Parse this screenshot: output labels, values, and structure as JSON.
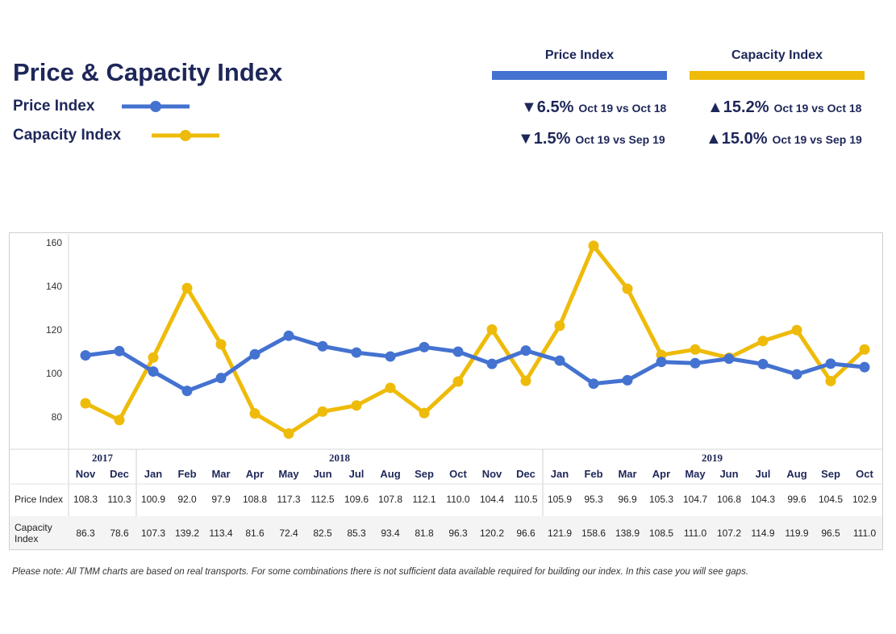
{
  "header": {
    "title": "Price & Capacity Index",
    "legend": [
      {
        "label": "Price Index",
        "color": "#4472d0"
      },
      {
        "label": "Capacity Index",
        "color": "#eebb0a"
      }
    ]
  },
  "kpis": [
    {
      "heading": "Price Index",
      "color": "#4472d0",
      "rows": [
        {
          "arrow": "▼",
          "pct": "6.5%",
          "comparison": "Oct 19 vs Oct 18"
        },
        {
          "arrow": "▼",
          "pct": "1.5%",
          "comparison": "Oct 19 vs Sep 19"
        }
      ]
    },
    {
      "heading": "Capacity Index",
      "color": "#eebb0a",
      "rows": [
        {
          "arrow": "▲",
          "pct": "15.2%",
          "comparison": "Oct 19 vs Oct 18"
        },
        {
          "arrow": "▲",
          "pct": "15.0%",
          "comparison": "Oct 19 vs Sep 19"
        }
      ]
    }
  ],
  "chart_data": {
    "type": "line",
    "years": [
      {
        "label": "2017",
        "months": 2
      },
      {
        "label": "2018",
        "months": 12
      },
      {
        "label": "2019",
        "months": 10
      }
    ],
    "categories": [
      "Nov",
      "Dec",
      "Jan",
      "Feb",
      "Mar",
      "Apr",
      "May",
      "Jun",
      "Jul",
      "Aug",
      "Sep",
      "Oct",
      "Nov",
      "Dec",
      "Jan",
      "Feb",
      "Mar",
      "Apr",
      "May",
      "Jun",
      "Jul",
      "Aug",
      "Sep",
      "Oct"
    ],
    "yticks": [
      80,
      100,
      120,
      140,
      160
    ],
    "ylim": [
      67,
      163
    ],
    "series": [
      {
        "name": "Price Index",
        "color": "#4472d0",
        "values": [
          108.3,
          110.3,
          100.9,
          92.0,
          97.9,
          108.8,
          117.3,
          112.5,
          109.6,
          107.8,
          112.1,
          110.0,
          104.4,
          110.5,
          105.9,
          95.3,
          96.9,
          105.3,
          104.7,
          106.8,
          104.3,
          99.6,
          104.5,
          102.9
        ],
        "labels": [
          "108.3",
          "110.3",
          "100.9",
          "92.0",
          "97.9",
          "108.8",
          "117.3",
          "112.5",
          "109.6",
          "107.8",
          "112.1",
          "110.0",
          "104.4",
          "110.5",
          "105.9",
          "95.3",
          "96.9",
          "105.3",
          "104.7",
          "106.8",
          "104.3",
          "99.6",
          "104.5",
          "102.9"
        ]
      },
      {
        "name": "Capacity Index",
        "table_label": [
          "Capacity",
          "Index"
        ],
        "color": "#eebb0a",
        "values": [
          86.3,
          78.6,
          107.3,
          139.2,
          113.4,
          81.6,
          72.4,
          82.5,
          85.3,
          93.4,
          81.8,
          96.3,
          120.2,
          96.6,
          121.9,
          158.6,
          138.9,
          108.5,
          111.0,
          107.2,
          114.9,
          119.9,
          96.5,
          111.0
        ],
        "labels": [
          "86.3",
          "78.6",
          "107.3",
          "139.2",
          "113.4",
          "81.6",
          "72.4",
          "82.5",
          "85.3",
          "93.4",
          "81.8",
          "96.3",
          "120.2",
          "96.6",
          "121.9",
          "158.6",
          "138.9",
          "108.5",
          "111.0",
          "107.2",
          "114.9",
          "119.9",
          "96.5",
          "111.0"
        ]
      }
    ],
    "grid": false
  },
  "note": "Please note: All TMM charts are based on real transports. For some combinations there is not sufficient data available required for building our index. In this case you will see gaps."
}
